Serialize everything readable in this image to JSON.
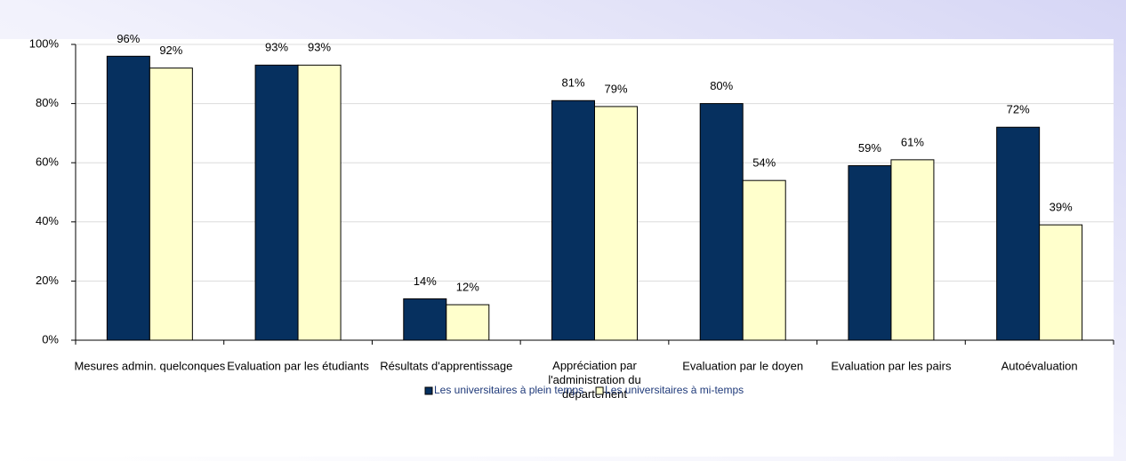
{
  "chart_data": {
    "type": "bar",
    "categories": [
      "Mesures admin. quelconques",
      "Evaluation par les étudiants",
      "Résultats d'apprentissage",
      "Appréciation par l'administration du département",
      "Evaluation par le doyen",
      "Evaluation par les pairs",
      "Autoévaluation"
    ],
    "series": [
      {
        "name": "Les universitaires à plein temps",
        "color": "#06305f",
        "values": [
          96,
          93,
          14,
          81,
          80,
          59,
          72
        ],
        "value_labels": [
          "96%",
          "93%",
          "14%",
          "81%",
          "80%",
          "59%",
          "72%"
        ]
      },
      {
        "name": "Les universitaires à mi-temps",
        "color": "#ffffcc",
        "values": [
          92,
          93,
          12,
          79,
          54,
          61,
          39
        ],
        "value_labels": [
          "92%",
          "93%",
          "12%",
          "79%",
          "54%",
          "61%",
          "39%"
        ]
      }
    ],
    "ylim": [
      0,
      100
    ],
    "yticks": [
      {
        "value": 0,
        "label": "0%"
      },
      {
        "value": 20,
        "label": "20%"
      },
      {
        "value": 40,
        "label": "40%"
      },
      {
        "value": 60,
        "label": "60%"
      },
      {
        "value": 80,
        "label": "80%"
      },
      {
        "value": 100,
        "label": "100%"
      }
    ],
    "grid": true,
    "legend": "bottom"
  }
}
